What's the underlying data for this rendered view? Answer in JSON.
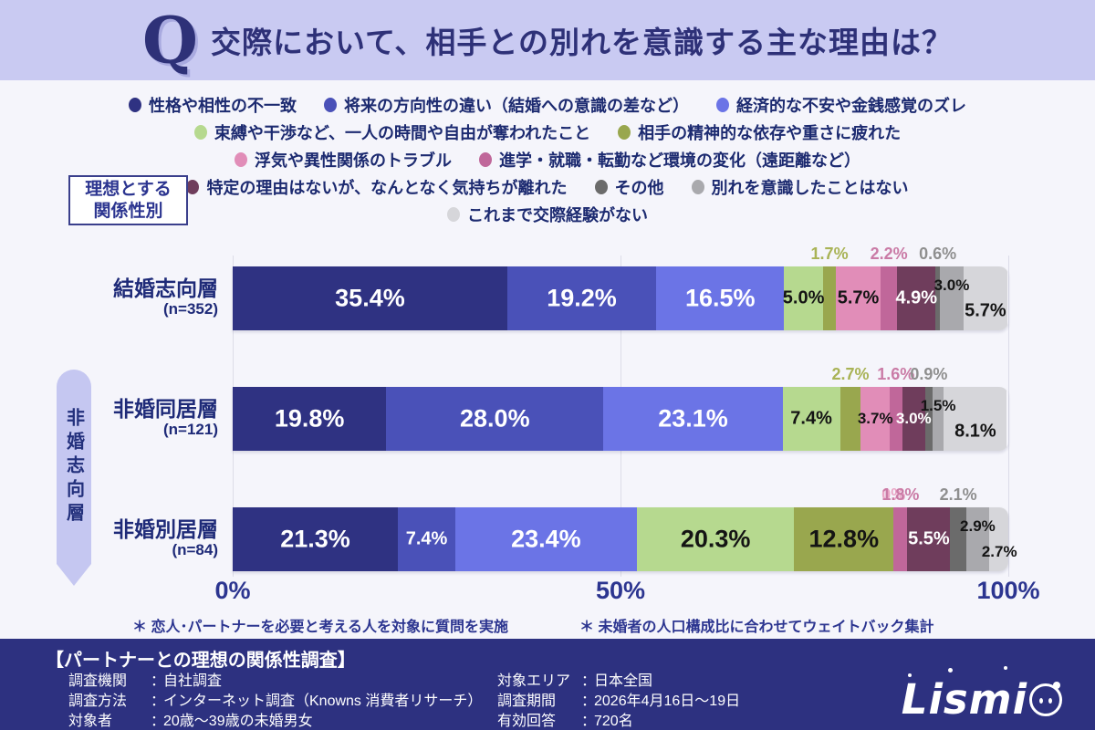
{
  "header": {
    "q_mark": "Q",
    "title": "交際において、相手との別れを意識する主な理由は？"
  },
  "relation_box": {
    "line1": "理想とする",
    "line2": "関係性別"
  },
  "group_pill": {
    "label": "非婚志向層"
  },
  "legend_rows": [
    [
      {
        "label": "性格や相性の不一致",
        "color": "#2f3282"
      },
      {
        "label": "将来の方向性の違い（結婚への意識の差など）",
        "color": "#4a51b8"
      },
      {
        "label": "経済的な不安や金銭感覚のズレ",
        "color": "#6b74e6"
      }
    ],
    [
      {
        "label": "束縛や干渉など、一人の時間や自由が奪われたこと",
        "color": "#b6d98f"
      },
      {
        "label": "相手の精神的な依存や重さに疲れた",
        "color": "#99a74e"
      }
    ],
    [
      {
        "label": "浮気や異性関係のトラブル",
        "color": "#e18db8"
      },
      {
        "label": "進学・就職・転勤など環境の変化（遠距離など）",
        "color": "#c0679a"
      }
    ],
    [
      {
        "label": "特定の理由はないが、なんとなく気持ちが離れた",
        "color": "#6f3d5c"
      },
      {
        "label": "その他",
        "color": "#6b6b6b"
      },
      {
        "label": "別れを意識したことはない",
        "color": "#a9a9ad"
      }
    ],
    [
      {
        "label": "これまで交際経験がない",
        "color": "#d6d6da"
      }
    ]
  ],
  "chart_data": {
    "type": "bar",
    "orientation": "horizontal-stacked",
    "xlim": [
      0,
      100
    ],
    "x_ticks": [
      "0%",
      "50%",
      "100%"
    ],
    "series_names": [
      "性格や相性の不一致",
      "将来の方向性の違い（結婚への意識の差など）",
      "経済的な不安や金銭感覚のズレ",
      "束縛や干渉など、一人の時間や自由が奪われたこと",
      "相手の精神的な依存や重さに疲れた",
      "浮気や異性関係のトラブル",
      "進学・就職・転勤など環境の変化（遠距離など）",
      "特定の理由はないが、なんとなく気持ちが離れた",
      "その他",
      "別れを意識したことはない",
      "これまで交際経験がない"
    ],
    "series_colors": [
      "#2f3282",
      "#4a51b8",
      "#6b74e6",
      "#b6d98f",
      "#99a74e",
      "#e18db8",
      "#c0679a",
      "#6f3d5c",
      "#6b6b6b",
      "#a9a9ad",
      "#d6d6da"
    ],
    "label_color_map": {
      "w": "#ffffff",
      "b": "#141414",
      "olive": "#a9b356",
      "mauve": "#ca7ba6",
      "gray": "#8f8f8f",
      "pink": "#eaa6c6"
    },
    "rows": [
      {
        "category": "結婚志向層",
        "n": "(n=352)",
        "values": [
          35.4,
          19.2,
          16.5,
          5.0,
          1.7,
          5.7,
          2.2,
          4.9,
          0.6,
          3.0,
          5.7
        ],
        "labels": [
          "35.4%",
          "19.2%",
          "16.5%",
          "5.0%",
          "1.7%",
          "5.7%",
          "2.2%",
          "4.9%",
          "0.6%",
          "3.0%",
          "5.7%"
        ],
        "label_pos": [
          "in",
          "in",
          "in",
          "in",
          "above",
          "in",
          "above",
          "in",
          "above",
          "in-high",
          "in-low"
        ],
        "label_color": [
          "w",
          "w",
          "w",
          "b",
          "olive",
          "b",
          "mauve",
          "w",
          "gray",
          "b",
          "b"
        ]
      },
      {
        "category": "非婚同居層",
        "n": "(n=121)",
        "values": [
          19.8,
          28.0,
          23.1,
          7.4,
          2.7,
          3.7,
          1.6,
          3.0,
          0.9,
          1.5,
          8.1
        ],
        "labels": [
          "19.8%",
          "28.0%",
          "23.1%",
          "7.4%",
          "2.7%",
          "3.7%",
          "1.6%",
          "3.0%",
          "0.9%",
          "1.5%",
          "8.1%"
        ],
        "label_pos": [
          "in",
          "in",
          "in",
          "in",
          "above",
          "in",
          "above",
          "in",
          "above",
          "in-high",
          "in-low"
        ],
        "label_color": [
          "w",
          "w",
          "w",
          "b",
          "olive",
          "b",
          "mauve",
          "w",
          "gray",
          "b",
          "b"
        ]
      },
      {
        "category": "非婚別居層",
        "n": "(n=84)",
        "values": [
          21.3,
          7.4,
          23.4,
          20.3,
          12.8,
          0.0,
          1.8,
          5.5,
          2.1,
          2.9,
          2.7
        ],
        "labels": [
          "21.3%",
          "7.4%",
          "23.4%",
          "20.3%",
          "12.8%",
          "0%",
          "1.8%",
          "5.5%",
          "2.1%",
          "2.9%",
          "2.7%"
        ],
        "label_pos": [
          "in",
          "in",
          "in",
          "in",
          "in",
          "above",
          "above",
          "in",
          "above",
          "in-high",
          "in-low"
        ],
        "label_color": [
          "w",
          "w",
          "w",
          "b",
          "b",
          "pink",
          "mauve",
          "w",
          "gray",
          "b",
          "b"
        ]
      }
    ]
  },
  "footnotes": [
    "＊ 恋人･パートナーを必要と考える人を対象に質問を実施",
    "＊ 未婚者の人口構成比に合わせてウェイトバック集計"
  ],
  "footer": {
    "title": "【パートナーとの理想の関係性調査】",
    "left": [
      {
        "label": "調査機関",
        "value": "自社調査"
      },
      {
        "label": "調査方法",
        "value": "インターネット調査（Knowns 消費者リサーチ）"
      },
      {
        "label": "対象者",
        "value": "20歳〜39歳の未婚男女"
      }
    ],
    "right": [
      {
        "label": "対象エリア",
        "value": "日本全国"
      },
      {
        "label": "調査期間",
        "value": "2026年4月16日〜19日"
      },
      {
        "label": "有効回答",
        "value": "720名"
      }
    ],
    "logo_text": "Lismi"
  }
}
